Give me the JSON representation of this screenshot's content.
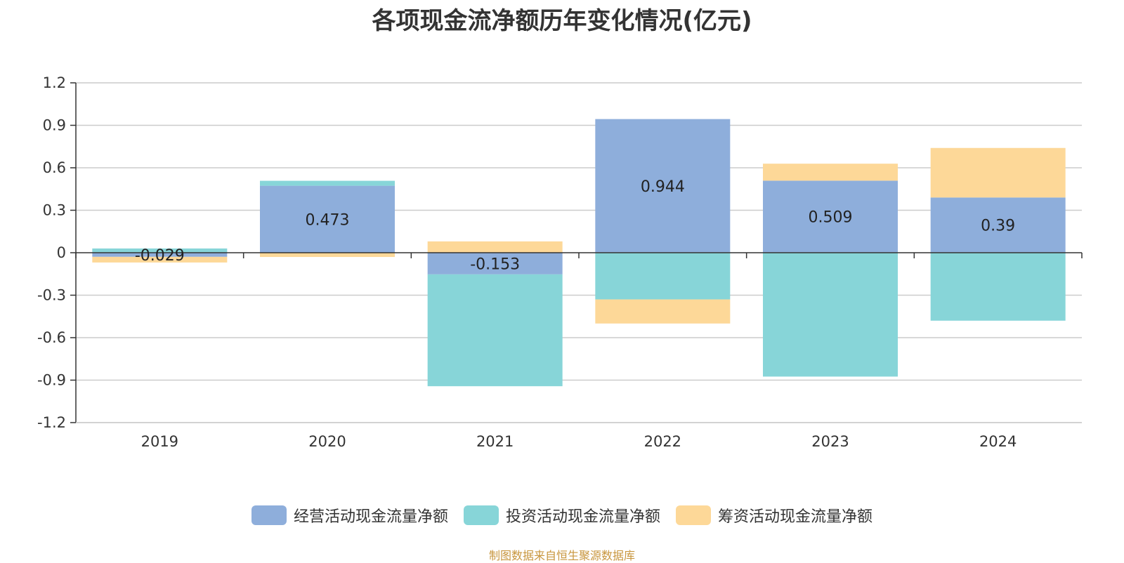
{
  "chart_data": {
    "type": "bar",
    "stacked": true,
    "title": "各项现金流净额历年变化情况(亿元)",
    "categories": [
      "2019",
      "2020",
      "2021",
      "2022",
      "2023",
      "2024"
    ],
    "ylim": [
      -1.2,
      1.2
    ],
    "yticks": [
      "1.2",
      "0.9",
      "0.6",
      "0.3",
      "0",
      "-0.3",
      "-0.6",
      "-0.9",
      "-1.2"
    ],
    "ytick_values": [
      1.2,
      0.9,
      0.6,
      0.3,
      0,
      -0.3,
      -0.6,
      -0.9,
      -1.2
    ],
    "grid": true,
    "legend_position": "bottom",
    "series": [
      {
        "name": "经营活动现金流量净额",
        "color": "#8eaedb",
        "values": [
          -0.029,
          0.473,
          -0.153,
          0.944,
          0.509,
          0.39
        ],
        "labels": [
          "-0.029",
          "0.473",
          "-0.153",
          "0.944",
          "0.509",
          "0.39"
        ]
      },
      {
        "name": "投资活动现金流量净额",
        "color": "#87d5d8",
        "values": [
          0.03,
          0.035,
          -0.79,
          -0.33,
          -0.875,
          -0.48
        ]
      },
      {
        "name": "筹资活动现金流量净额",
        "color": "#fdd898",
        "values": [
          -0.04,
          -0.03,
          0.08,
          -0.17,
          0.12,
          0.35
        ]
      }
    ]
  },
  "source_note": "制图数据来自恒生聚源数据库"
}
